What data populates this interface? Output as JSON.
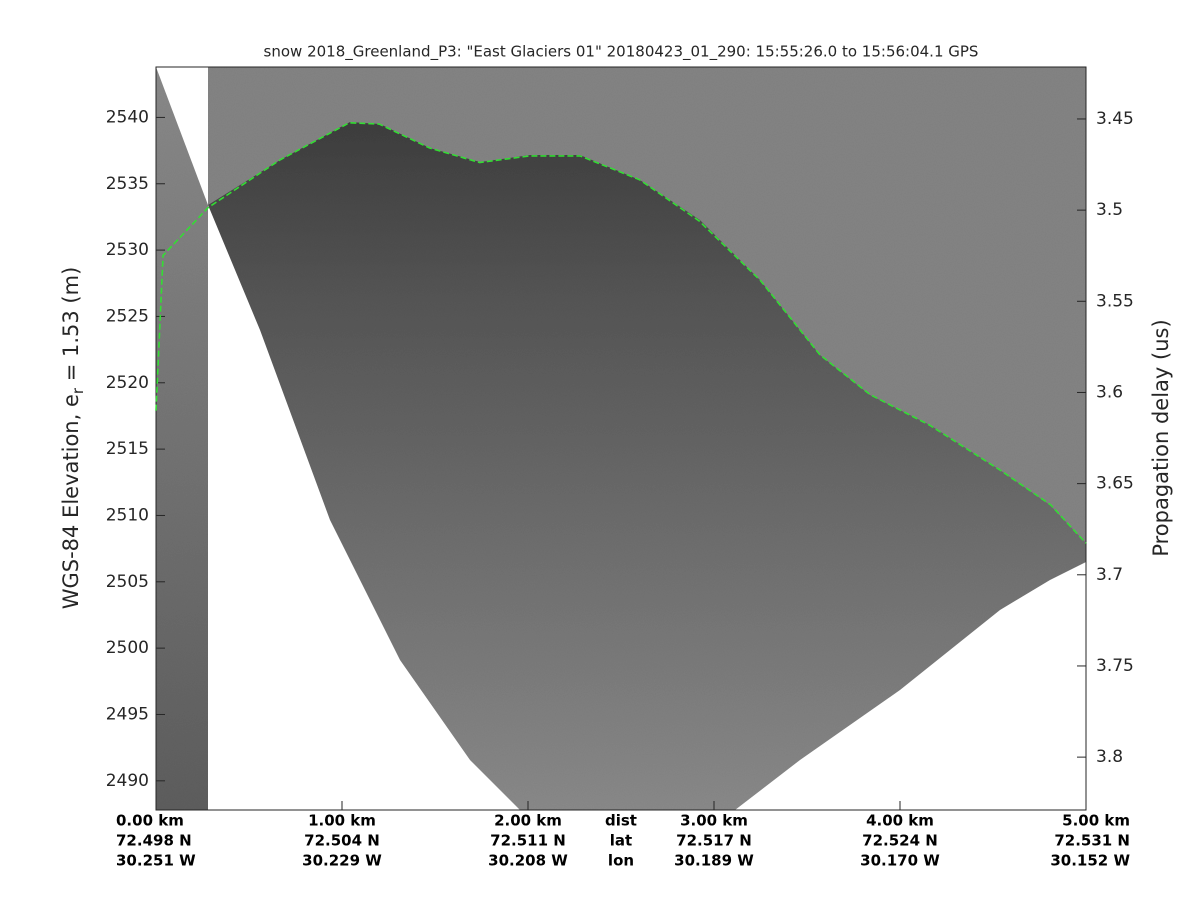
{
  "chart_data": {
    "type": "echogram",
    "title": "snow 2018_Greenland_P3: \"East Glaciers 01\"  20180423_01_290: 15:55:26.0 to 15:56:04.1 GPS",
    "ylabel_parts": [
      "WGS-84 Elevation, e",
      "r",
      " = 1.53 (m)"
    ],
    "y2label": "Propagation delay (us)",
    "xlim": [
      0,
      5
    ],
    "xticks": [
      {
        "value": 0,
        "label": "0.00 km"
      },
      {
        "value": 1,
        "label": "1.00 km"
      },
      {
        "value": 2,
        "label": "2.00 km"
      },
      {
        "value": 3,
        "label": "3.00 km"
      },
      {
        "value": 4,
        "label": "4.00 km"
      },
      {
        "value": 5,
        "label": "5.00 km"
      }
    ],
    "lat_labels": [
      "72.498 N",
      "72.504 N",
      "72.511 N",
      "72.517 N",
      "72.524 N",
      "72.531 N"
    ],
    "lon_labels": [
      "30.251 W",
      "30.229 W",
      "30.208 W",
      "30.189 W",
      "30.170 W",
      "30.152 W"
    ],
    "row_labels": [
      "dist",
      "lat",
      "lon"
    ],
    "ylim": [
      2487.8,
      2543.8
    ],
    "yticks": [
      2490,
      2495,
      2500,
      2505,
      2510,
      2515,
      2520,
      2525,
      2530,
      2535,
      2540
    ],
    "y2lim": [
      3.4215,
      3.829
    ],
    "y2ticks": [
      3.45,
      3.5,
      3.55,
      3.6,
      3.65,
      3.7,
      3.75,
      3.8
    ],
    "color": "#33dd33",
    "x": [
      0,
      0.038,
      0.28,
      0.667,
      1.04,
      1.2,
      1.47,
      1.74,
      2.01,
      2.28,
      2.6,
      2.92,
      3.25,
      3.57,
      3.84,
      4.16,
      4.54,
      4.81,
      5.0
    ],
    "values": [
      2517.9,
      2529.6,
      2533.2,
      2536.8,
      2539.6,
      2539.5,
      2537.7,
      2536.6,
      2537.1,
      2537.1,
      2535.3,
      2532.2,
      2527.7,
      2522.1,
      2519.1,
      2516.8,
      2513.4,
      2510.8,
      2507.9
    ]
  }
}
